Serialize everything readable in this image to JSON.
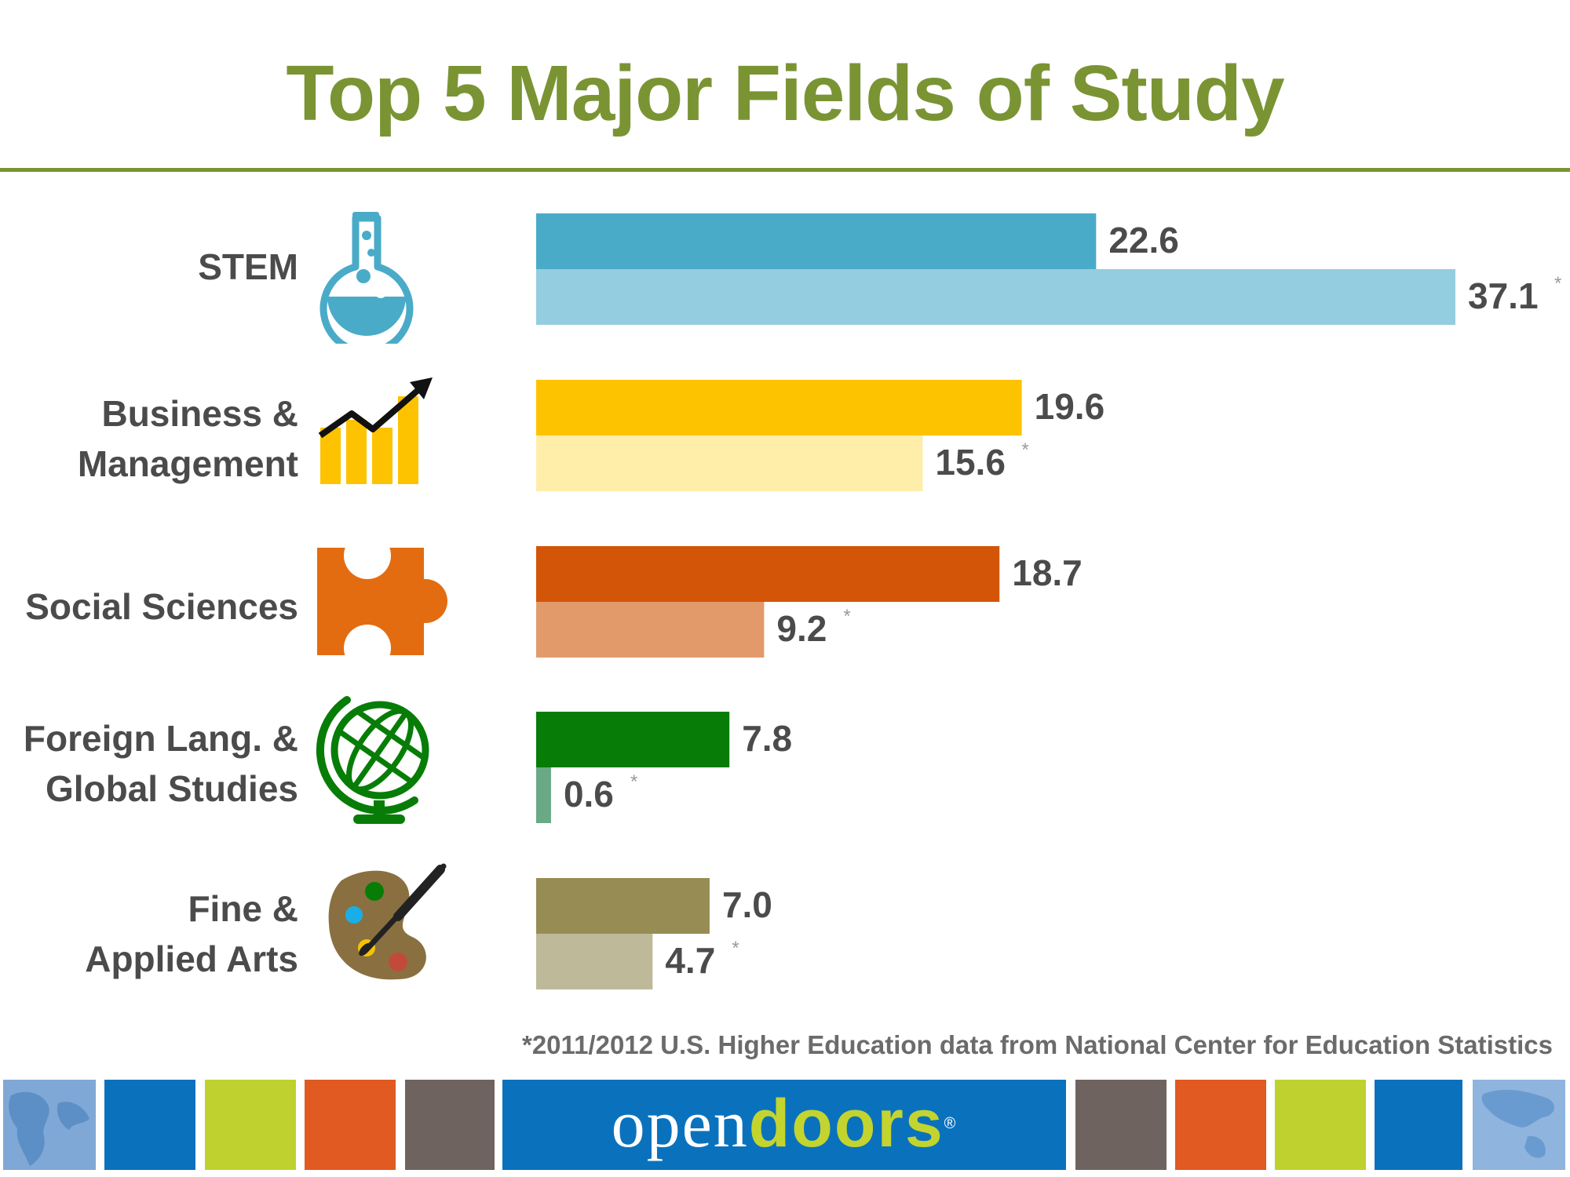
{
  "title": "Top 5 Major Fields of Study",
  "footnote": "*2011/2012 U.S. Higher Education data from National Center for Education Statistics",
  "logo": {
    "part1": "open",
    "part2": "doors",
    "reg": "®"
  },
  "colors": {
    "title": "#7a9433",
    "footer_tiles": [
      "#0a72bd",
      "#bfd12f",
      "#e05a21",
      "#6f6360",
      "#6f6360",
      "#e05a21",
      "#bfd12f",
      "#0a72bd"
    ]
  },
  "icons": [
    "flask-icon",
    "rising-chart-icon",
    "puzzle-piece-icon",
    "globe-icon",
    "paint-palette-icon"
  ],
  "chart_data": {
    "type": "bar",
    "orientation": "horizontal",
    "categories": [
      {
        "lines": [
          "STEM"
        ]
      },
      {
        "lines": [
          "Business &",
          "Management"
        ]
      },
      {
        "lines": [
          "Social Sciences"
        ]
      },
      {
        "lines": [
          "Foreign Lang. &",
          "Global Studies"
        ]
      },
      {
        "lines": [
          "Fine &",
          "Applied Arts"
        ]
      }
    ],
    "series": [
      {
        "values": [
          22.6,
          19.6,
          18.7,
          7.8,
          7.0
        ],
        "colors": [
          "#4aabc8",
          "#fdc300",
          "#d35508",
          "#077d07",
          "#978d54"
        ]
      },
      {
        "values": [
          37.1,
          15.6,
          9.2,
          0.6,
          4.7
        ],
        "colors": [
          "#94cddf",
          "#feeeaa",
          "#e39a6b",
          "#6aa986",
          "#beb999"
        ],
        "marker": "*"
      }
    ],
    "value_labels": [
      [
        "22.6",
        "19.6",
        "18.7",
        "7.8",
        "7.0"
      ],
      [
        "37.1",
        "15.6",
        "9.2",
        "0.6",
        "4.7"
      ]
    ],
    "xlim": [
      0,
      37.1
    ],
    "grid": false,
    "legend": "none"
  }
}
